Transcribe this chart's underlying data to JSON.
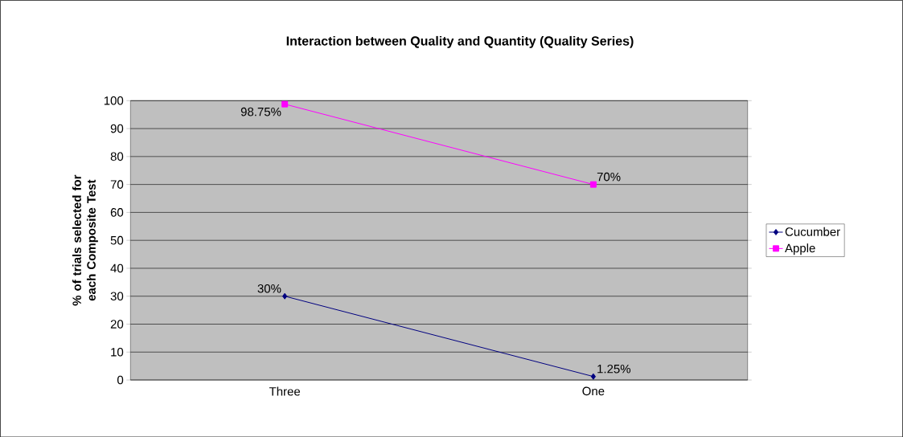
{
  "chart_data": {
    "type": "line",
    "title": "Interaction between Quality and Quantity (Quality Series)",
    "ylabel": "% of trials selected for each Composite Test",
    "categories": [
      "Three",
      "One"
    ],
    "series": [
      {
        "name": "Cucumber",
        "color": "#000080",
        "values": [
          30,
          1.25
        ],
        "value_labels": [
          "30%",
          "1.25%"
        ],
        "marker": "diamond"
      },
      {
        "name": "Apple",
        "color": "#ff00ff",
        "values": [
          98.75,
          70
        ],
        "value_labels": [
          "98.75%",
          "70%"
        ],
        "marker": "square"
      }
    ],
    "ylim": [
      0,
      100
    ],
    "yticks": [
      0,
      10,
      20,
      30,
      40,
      50,
      60,
      70,
      80,
      90,
      100
    ],
    "grid": "y",
    "legend": "right"
  }
}
